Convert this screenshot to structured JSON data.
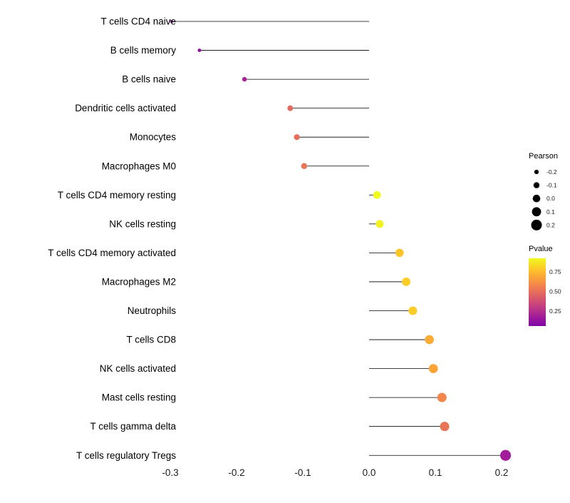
{
  "figure": {
    "background": "#ffffff"
  },
  "chart_data": {
    "type": "scatter",
    "subtype": "lollipop",
    "title": "",
    "xlabel": "",
    "ylabel": "",
    "xlim": [
      -0.335,
      0.235
    ],
    "xticks": [
      -0.3,
      -0.2,
      -0.1,
      0.0,
      0.1,
      0.2
    ],
    "xtick_labels": [
      "-0.3",
      "-0.2",
      "-0.1",
      "0.0",
      "0.1",
      "0.2"
    ],
    "grid": false,
    "points": [
      {
        "label": "T cells CD4 naive",
        "pearson": -0.298,
        "pvalue": 0.1
      },
      {
        "label": "B cells memory",
        "pearson": -0.256,
        "pvalue": 0.12
      },
      {
        "label": "B cells naive",
        "pearson": -0.188,
        "pvalue": 0.2
      },
      {
        "label": "Dendritic cells activated",
        "pearson": -0.119,
        "pvalue": 0.48
      },
      {
        "label": "Monocytes",
        "pearson": -0.109,
        "pvalue": 0.5
      },
      {
        "label": "Macrophages M0",
        "pearson": -0.098,
        "pvalue": 0.52
      },
      {
        "label": "T cells CD4 memory resting",
        "pearson": 0.012,
        "pvalue": 0.92
      },
      {
        "label": "NK cells resting",
        "pearson": 0.016,
        "pvalue": 0.9
      },
      {
        "label": "T cells CD4 memory activated",
        "pearson": 0.046,
        "pvalue": 0.78
      },
      {
        "label": "Macrophages M2",
        "pearson": 0.056,
        "pvalue": 0.8
      },
      {
        "label": "Neutrophils",
        "pearson": 0.066,
        "pvalue": 0.8
      },
      {
        "label": "T cells CD8",
        "pearson": 0.091,
        "pvalue": 0.7
      },
      {
        "label": "NK cells activated",
        "pearson": 0.097,
        "pvalue": 0.68
      },
      {
        "label": "Mast cells resting",
        "pearson": 0.11,
        "pvalue": 0.58
      },
      {
        "label": "T cells gamma delta",
        "pearson": 0.114,
        "pvalue": 0.52
      },
      {
        "label": "T cells regulatory  Tregs",
        "pearson": 0.206,
        "pvalue": 0.18
      }
    ],
    "legend_position": "right",
    "size_legend": {
      "title": "Pearson",
      "values": [
        -0.2,
        -0.1,
        0.0,
        0.1,
        0.2
      ],
      "labels": [
        "-0.2",
        "-0.1",
        "0.0",
        "0.1",
        "0.2"
      ]
    },
    "color_legend": {
      "title": "Pvalue",
      "ticks": [
        0.75,
        0.5,
        0.25
      ],
      "labels": [
        "0.75",
        "0.50",
        "0.25"
      ],
      "domain": [
        0.06,
        0.92
      ]
    }
  },
  "colors": {
    "stem": "#000000",
    "label_text": "#000000",
    "tick_text": "#1a1a1a",
    "legend_dot": "#000000",
    "plasma_stops": [
      "#0d0887",
      "#46039f",
      "#7201a8",
      "#9c179e",
      "#bd3786",
      "#d8576b",
      "#ed7953",
      "#fb9f3a",
      "#fdca26",
      "#f0f921"
    ],
    "colormap_t_range": [
      0.25,
      1.0
    ]
  }
}
